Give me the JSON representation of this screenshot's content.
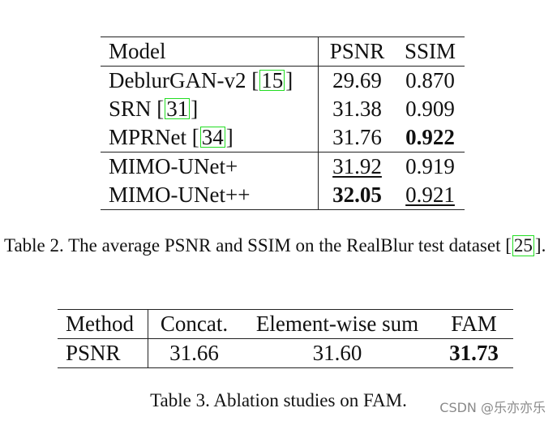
{
  "table1": {
    "headers": [
      "Model",
      "PSNR",
      "SSIM"
    ],
    "rows": [
      {
        "model": "DeblurGAN-v2",
        "cite": "15",
        "psnr": "29.69",
        "ssim": "0.870"
      },
      {
        "model": "SRN",
        "cite": "31",
        "psnr": "31.38",
        "ssim": "0.909"
      },
      {
        "model": "MPRNet",
        "cite": "34",
        "psnr": "31.76",
        "ssim": "0.922"
      },
      {
        "model": "MIMO-UNet+",
        "cite": "",
        "psnr": "31.92",
        "ssim": "0.919"
      },
      {
        "model": "MIMO-UNet++",
        "cite": "",
        "psnr": "32.05",
        "ssim": "0.921"
      }
    ],
    "caption_text": "Table 2. The average PSNR and SSIM on the RealBlur test dataset",
    "caption_cite": "25",
    "caption_end": "."
  },
  "table2": {
    "headers": [
      "Method",
      "Concat.",
      "Element-wise sum",
      "FAM"
    ],
    "row": [
      "PSNR",
      "31.66",
      "31.60",
      "31.73"
    ],
    "caption": "Table 3. Ablation studies on FAM."
  },
  "watermark": "CSDN @乐亦亦乐",
  "colors": {
    "citation_box": "#22dd22"
  }
}
